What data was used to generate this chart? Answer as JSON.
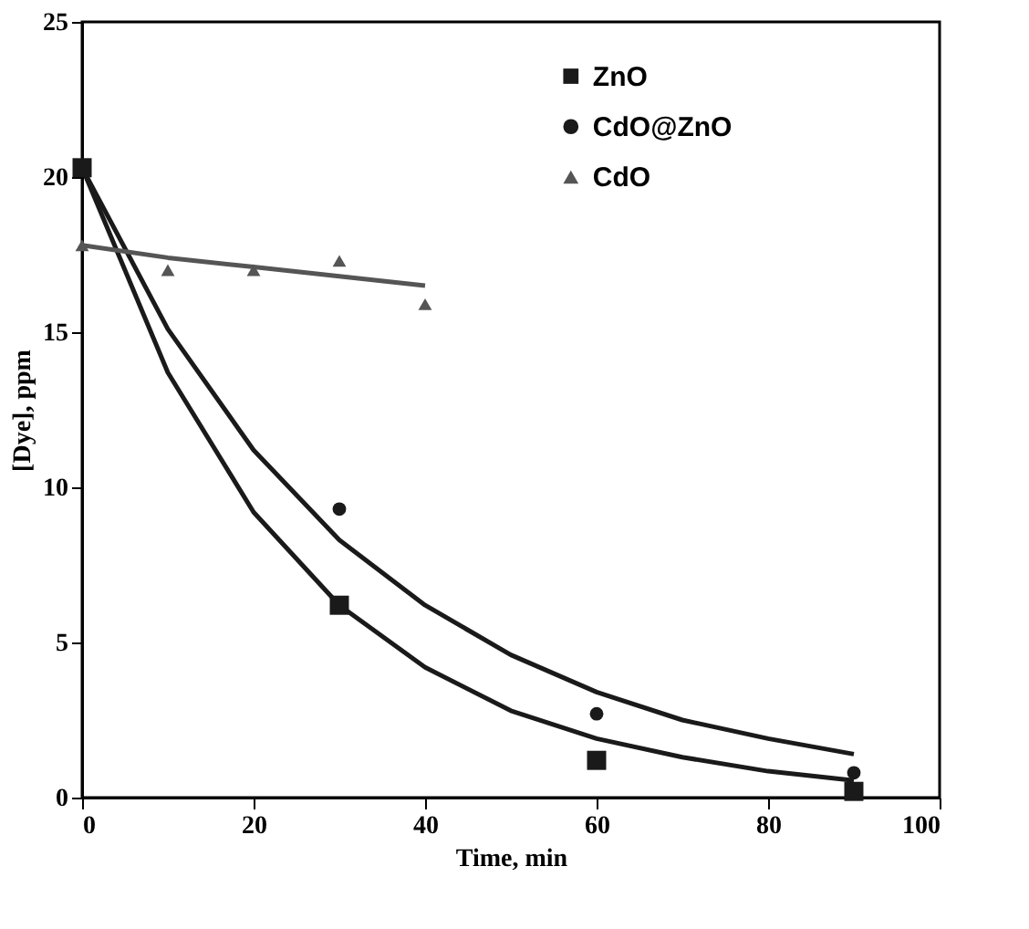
{
  "chart_data": {
    "type": "scatter",
    "xlabel": "Time, min",
    "ylabel": "[Dye], ppm",
    "xlim": [
      0,
      100
    ],
    "ylim": [
      0,
      25
    ],
    "xticks": [
      0,
      20,
      40,
      60,
      80,
      100
    ],
    "yticks": [
      0,
      5,
      10,
      15,
      20,
      25
    ],
    "grid": false,
    "legend": "top right",
    "line_style": "solid",
    "series": [
      {
        "name": "ZnO",
        "marker": "square",
        "color": "#1a1a1a",
        "x": [
          0,
          30,
          60,
          90
        ],
        "values": [
          20.3,
          6.2,
          1.2,
          0.2
        ]
      },
      {
        "name": "CdO@ZnO",
        "marker": "circle",
        "color": "#1a1a1a",
        "x": [
          30,
          60,
          90
        ],
        "values": [
          9.3,
          2.7,
          0.8
        ]
      },
      {
        "name": "CdO",
        "marker": "triangle",
        "color": "#555555",
        "x": [
          0,
          10,
          20,
          30,
          40
        ],
        "values": [
          17.8,
          17,
          17,
          17.3,
          15.9
        ]
      },
      {
        "type": "line",
        "color": "#1a1a1a",
        "x": [
          0,
          10,
          20,
          30,
          40,
          50,
          60,
          70,
          80,
          90
        ],
        "values": [
          20.3,
          13.7,
          9.2,
          6.2,
          4.2,
          2.8,
          1.9,
          1.3,
          0.85,
          0.55
        ]
      },
      {
        "type": "line",
        "color": "#1a1a1a",
        "x": [
          0,
          10,
          20,
          30,
          40,
          50,
          60,
          70,
          80,
          90
        ],
        "values": [
          20.3,
          15.1,
          11.2,
          8.3,
          6.2,
          4.6,
          3.4,
          2.5,
          1.9,
          1.4
        ]
      },
      {
        "type": "line",
        "color": "#555555",
        "x": [
          0,
          10,
          20,
          30,
          40
        ],
        "values": [
          17.8,
          17.4,
          17.1,
          16.8,
          16.5
        ]
      }
    ]
  }
}
